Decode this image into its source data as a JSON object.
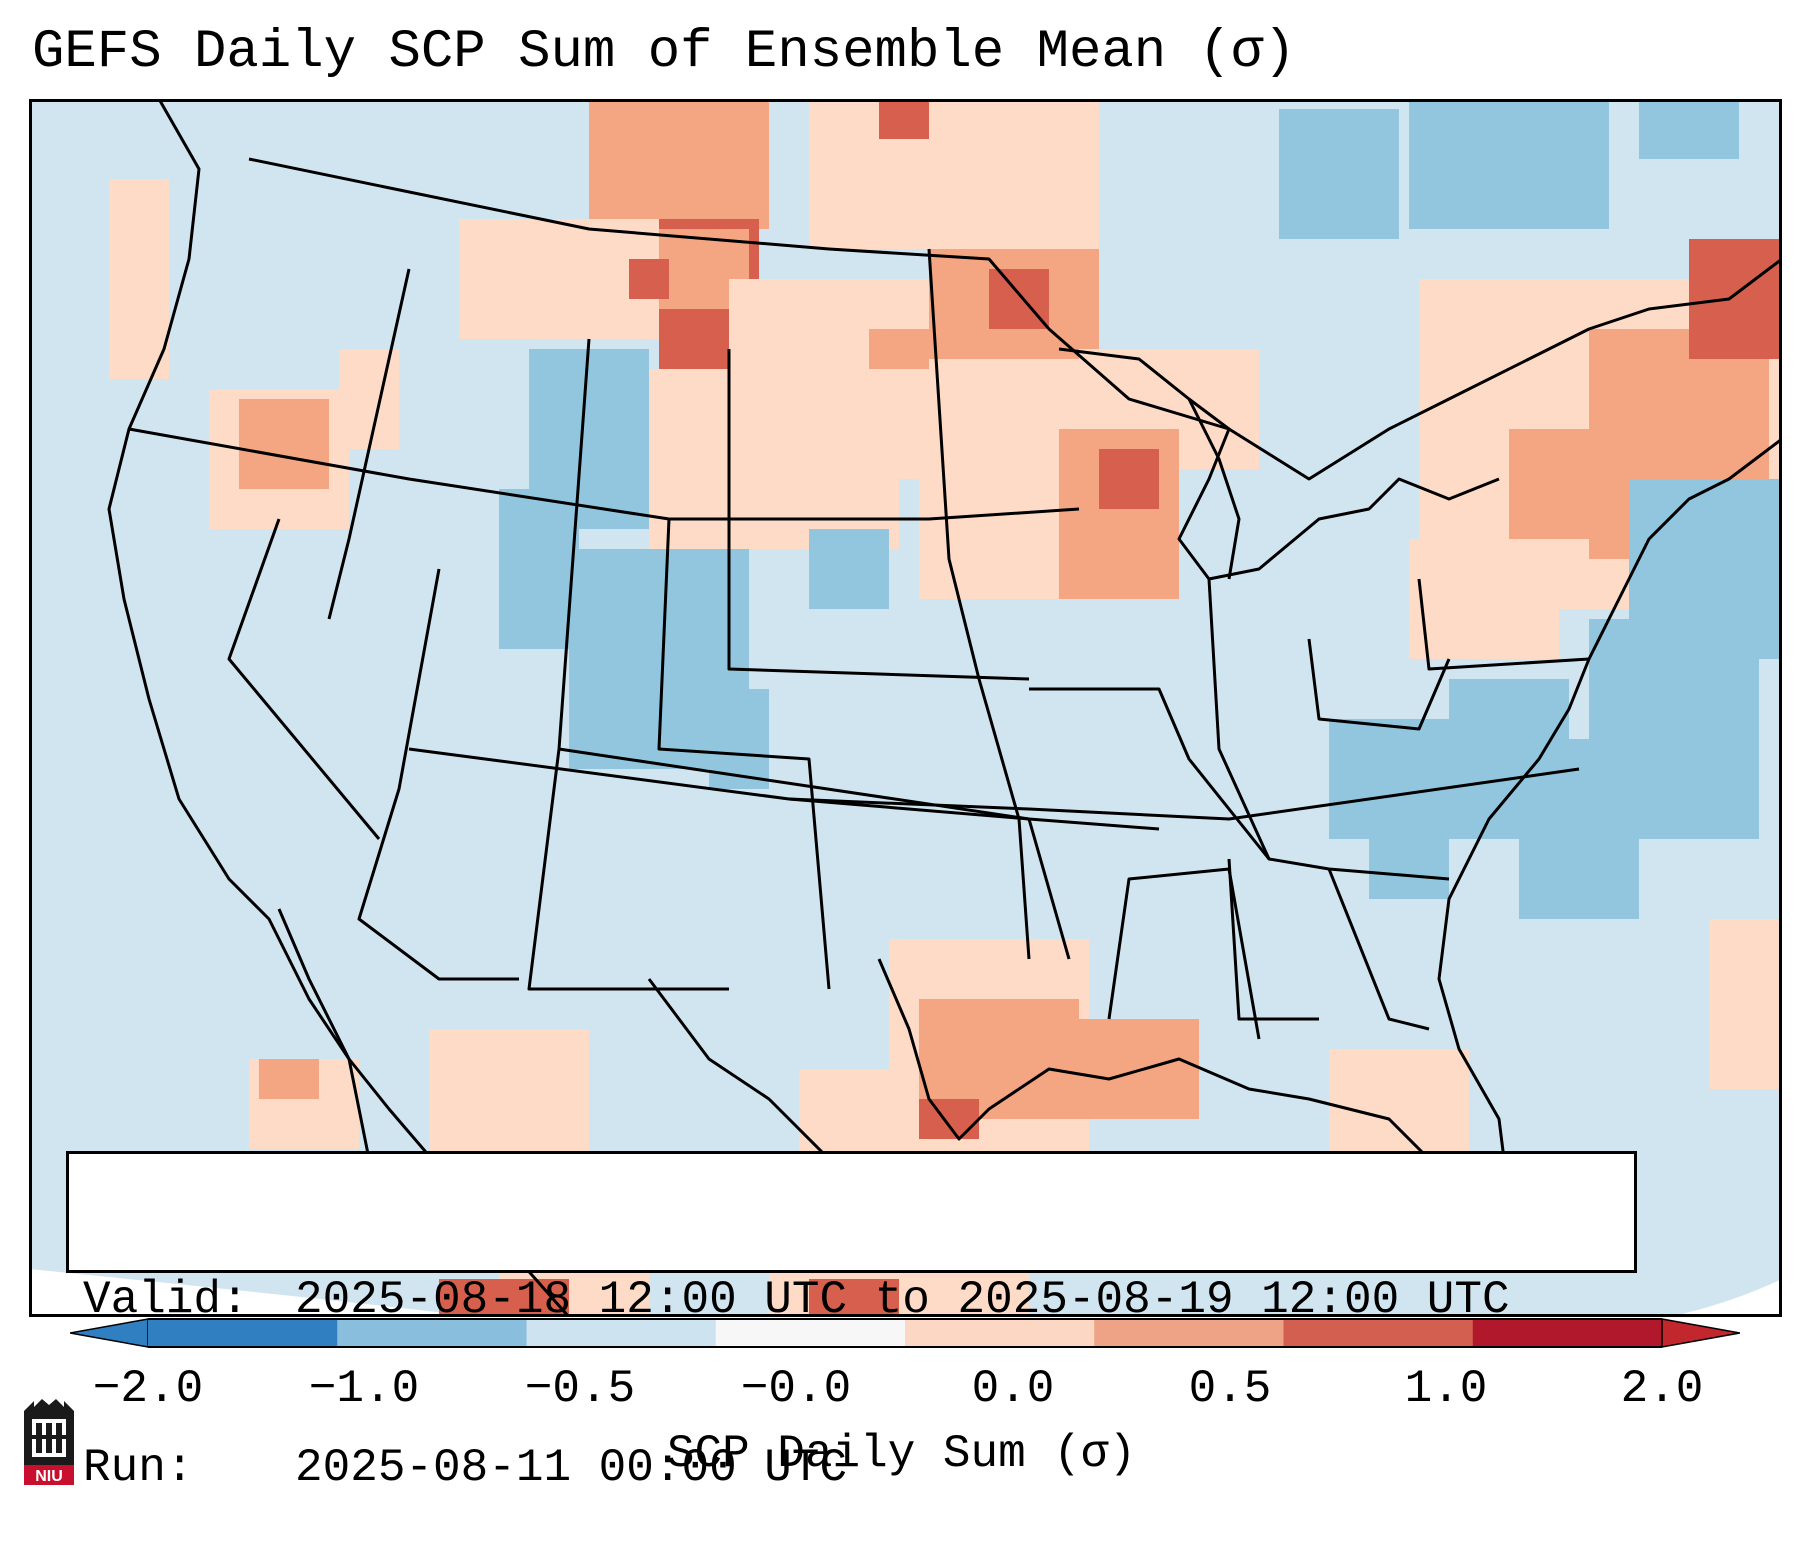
{
  "title": "GEFS Daily SCP Sum of Ensemble Mean (σ)",
  "valid": {
    "label": "Valid:",
    "value": "2025-08-18 12:00 UTC to 2025-08-19 12:00 UTC"
  },
  "run": {
    "label": "Run:",
    "value": "2025-08-11 00:00 UTC"
  },
  "colorbar": {
    "label": "SCP Daily Sum (σ)",
    "ticks": [
      "−2.0",
      "−1.0",
      "−0.5",
      "−0.0",
      "0.0",
      "0.5",
      "1.0",
      "2.0"
    ],
    "colors": [
      "#2f7fc1",
      "#89bedc",
      "#cde3f0",
      "#f7f7f7",
      "#fbd7c4",
      "#eea286",
      "#d35f50",
      "#b2182b"
    ],
    "extend_low_color": "#2f7fc1",
    "extend_high_color": "#c1272d"
  },
  "map_colors": {
    "ocean": "#d1e5f0",
    "land_neutral": "#d1e5f0",
    "neg_mid": "#92c5de",
    "pos_low": "#fddbc7",
    "pos_mid": "#f4a582",
    "pos_high": "#d6604d",
    "pos_max": "#b2182b"
  },
  "logo": {
    "text": "NIU"
  }
}
